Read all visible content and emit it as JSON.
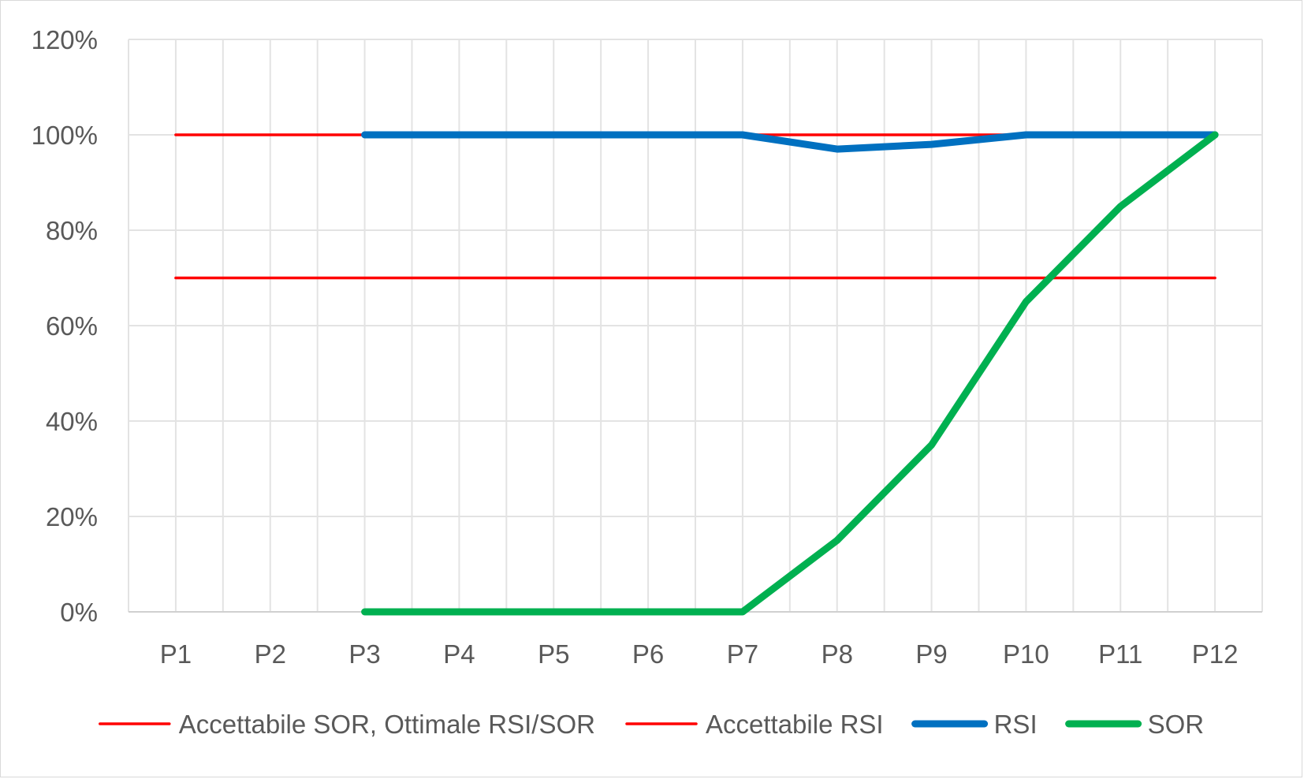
{
  "chart_data": {
    "type": "line",
    "title": "",
    "xlabel": "",
    "ylabel": "",
    "categories": [
      "P1",
      "P2",
      "P3",
      "P4",
      "P5",
      "P6",
      "P7",
      "P8",
      "P9",
      "P10",
      "P11",
      "P12"
    ],
    "ylim": [
      0,
      1.2
    ],
    "yticks": [
      0,
      0.2,
      0.4,
      0.6,
      0.8,
      1.0,
      1.2
    ],
    "ytick_labels": [
      "0%",
      "20%",
      "40%",
      "60%",
      "80%",
      "100%",
      "120%"
    ],
    "grid": true,
    "legend_position": "bottom",
    "series": [
      {
        "name": "Accettabile SOR, Ottimale RSI/SOR",
        "color": "#ff0000",
        "width": "thin",
        "values": [
          1.0,
          1.0,
          1.0,
          1.0,
          1.0,
          1.0,
          1.0,
          1.0,
          1.0,
          1.0,
          1.0,
          1.0
        ]
      },
      {
        "name": "Accettabile RSI",
        "color": "#ff0000",
        "width": "thin",
        "values": [
          0.7,
          0.7,
          0.7,
          0.7,
          0.7,
          0.7,
          0.7,
          0.7,
          0.7,
          0.7,
          0.7,
          0.7
        ]
      },
      {
        "name": "RSI",
        "color": "#0070c0",
        "width": "thick",
        "values": [
          null,
          null,
          1.0,
          1.0,
          1.0,
          1.0,
          1.0,
          0.97,
          0.98,
          1.0,
          1.0,
          1.0
        ]
      },
      {
        "name": "SOR",
        "color": "#00b050",
        "width": "thick",
        "values": [
          null,
          null,
          0.0,
          0.0,
          0.0,
          0.0,
          0.0,
          0.15,
          0.35,
          0.65,
          0.85,
          1.0
        ]
      }
    ]
  }
}
